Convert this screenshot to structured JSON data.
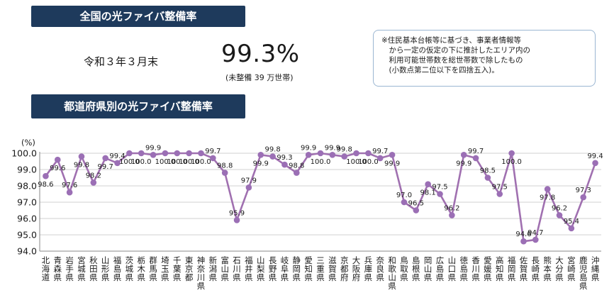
{
  "header": {
    "national_title": "全国の光ファイバ整備率",
    "as_of": "令和３年３月末",
    "national_rate": "99.3%",
    "national_note": "(未整備 39 万世帯)",
    "prefecture_title": "都道府県別の光ファイバ整備率"
  },
  "note": {
    "lines": [
      "※住民基本台帳等に基づき、事業者情報等",
      "　から一定の仮定の下に推計したエリア内の",
      "　利用可能世帯数を総世帯数で除したもの",
      "　(小数点第二位以下を四捨五入)。"
    ]
  },
  "chart_data": {
    "type": "line",
    "unit_label": "(%)",
    "ylim": [
      94.0,
      100.0
    ],
    "yticks": [
      "94.0",
      "95.0",
      "96.0",
      "97.0",
      "98.0",
      "99.0",
      "100.0"
    ],
    "grid": true,
    "line_color": "#a070b0",
    "marker_color": "#9b6fb5",
    "categories": [
      "北海道",
      "青森県",
      "岩手県",
      "宮城県",
      "秋田県",
      "山形県",
      "福島県",
      "茨城県",
      "栃木県",
      "群馬県",
      "埼玉県",
      "千葉県",
      "東京都",
      "神奈川県",
      "新潟県",
      "富山県",
      "石川県",
      "福井県",
      "山梨県",
      "長野県",
      "岐阜県",
      "静岡県",
      "愛知県",
      "三重県",
      "滋賀県",
      "京都府",
      "大阪府",
      "兵庫県",
      "奈良県",
      "和歌山県",
      "鳥取県",
      "島根県",
      "岡山県",
      "広島県",
      "山口県",
      "徳島県",
      "香川県",
      "愛媛県",
      "高知県",
      "福岡県",
      "佐賀県",
      "長崎県",
      "熊本県",
      "大分県",
      "宮崎県",
      "鹿児島県",
      "沖縄県"
    ],
    "values": [
      98.6,
      99.6,
      97.6,
      99.8,
      98.2,
      99.7,
      99.4,
      100.0,
      100.0,
      99.9,
      100.0,
      100.0,
      100.0,
      100.0,
      99.7,
      98.8,
      95.9,
      97.9,
      99.9,
      99.8,
      99.3,
      98.8,
      99.9,
      100.0,
      99.9,
      99.8,
      100.0,
      100.0,
      99.7,
      99.9,
      97.0,
      96.5,
      98.1,
      97.5,
      96.2,
      99.9,
      99.7,
      98.5,
      97.5,
      100.0,
      94.6,
      94.7,
      97.8,
      96.2,
      95.4,
      97.3,
      99.4
    ],
    "value_labels": [
      "98.6",
      "99.6",
      "97.6",
      "99.8",
      "98.2",
      "99.7",
      "99.4",
      "100.0",
      "100.0",
      "99.9",
      "100.0",
      "100.0",
      "100.0",
      "100.0",
      "99.7",
      "98.8",
      "95.9",
      "97.9",
      "99.9",
      "99.8",
      "99.3",
      "98.8",
      "99.9",
      "100.0",
      "99.9",
      "99.8",
      "100.0",
      "100.0",
      "99.7",
      "99.9",
      "97.0",
      "96.5",
      "98.1",
      "97.5",
      "96.2",
      "99.9",
      "99.7",
      "98.5",
      "97.5",
      "100.0",
      "94.6",
      "94.7",
      "97.8",
      "96.2",
      "95.4",
      "97.3",
      "99.4"
    ]
  }
}
